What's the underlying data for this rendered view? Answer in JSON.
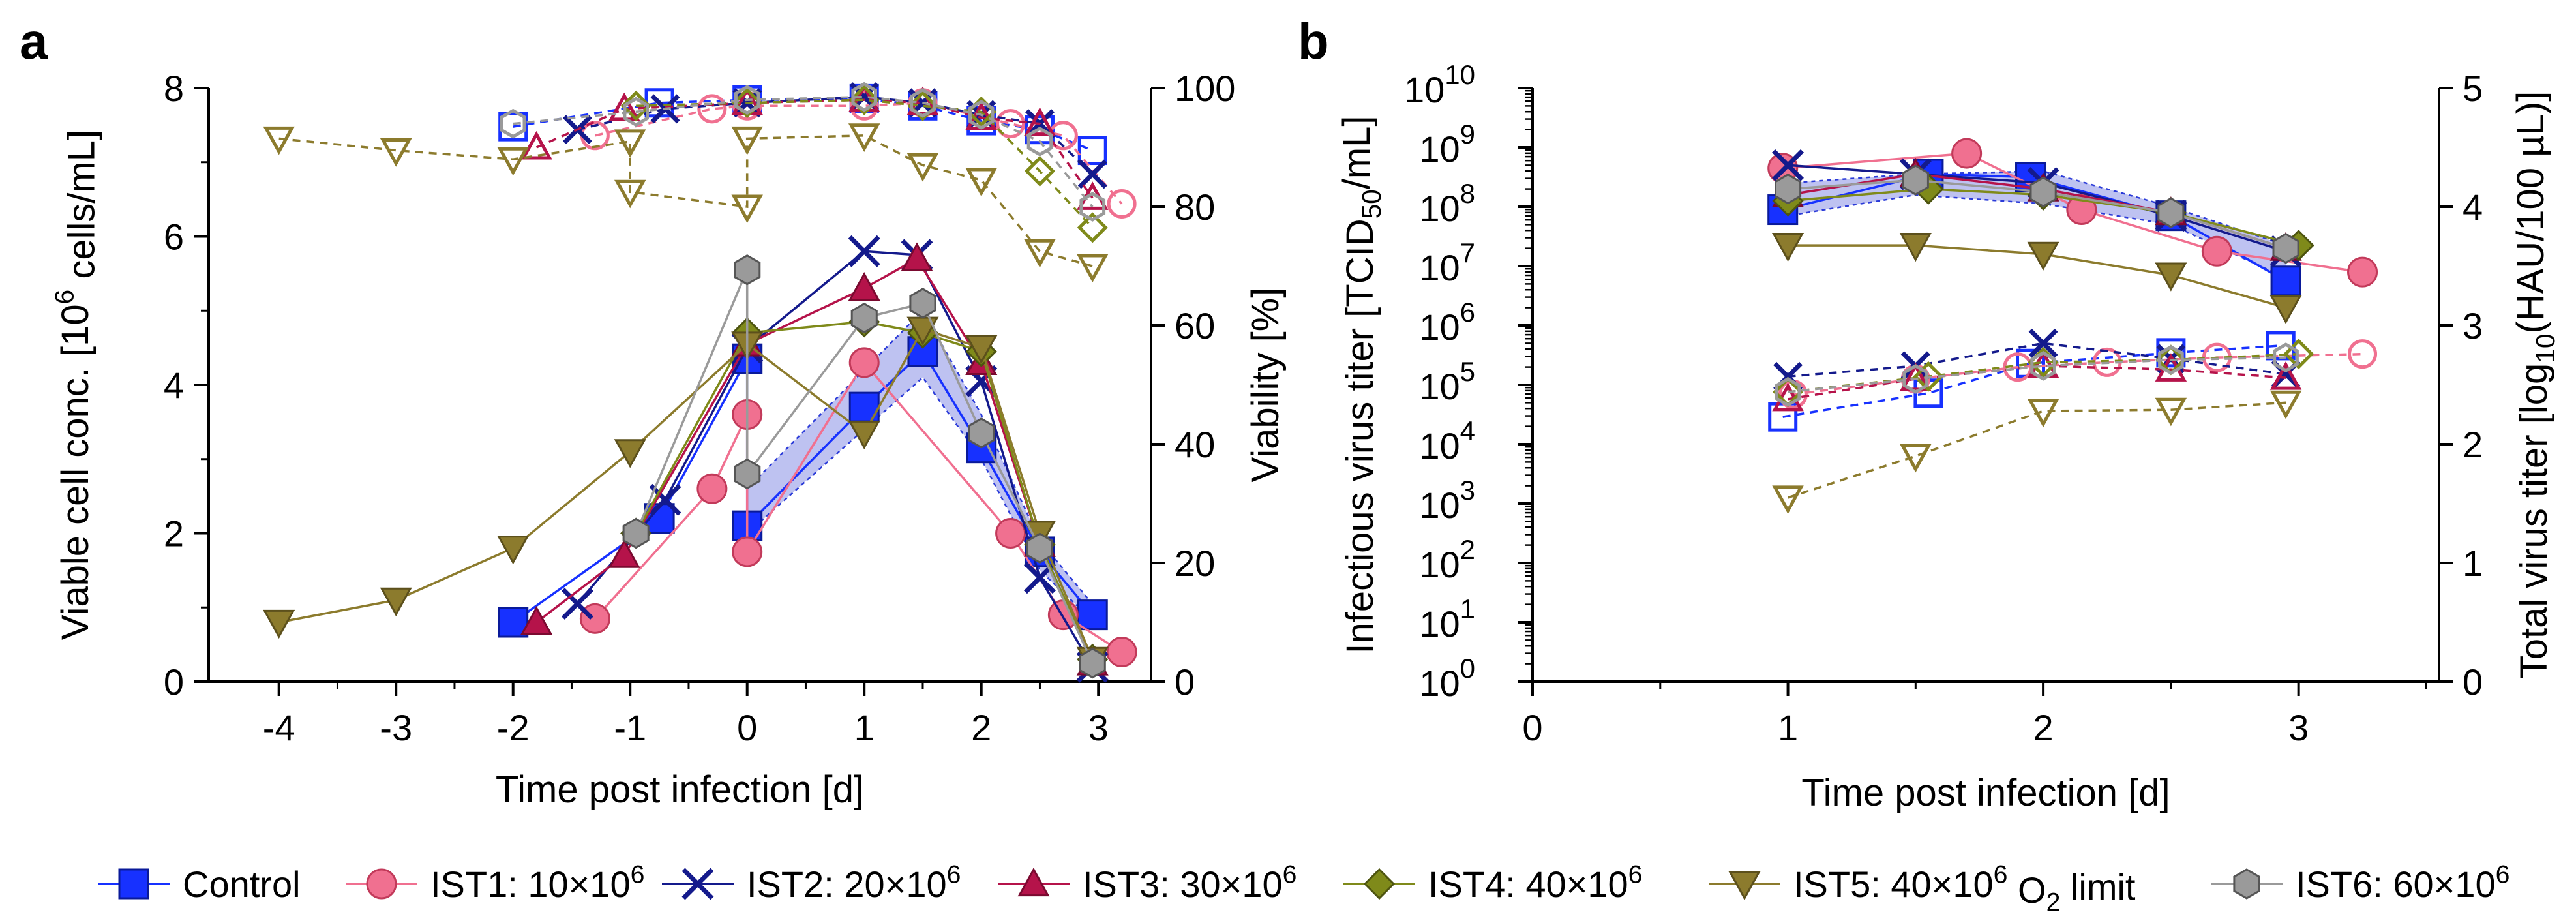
{
  "chart_data": [
    {
      "type": "line",
      "panel_label": "a",
      "xlabel": "Time post infection [d]",
      "ylabel_left_parts": [
        "Viable cell conc. [10",
        "6",
        " cells/mL]"
      ],
      "ylabel_right": "Viability [%]",
      "xlim": [
        -4.6,
        3.45
      ],
      "ylim_left": [
        0,
        8
      ],
      "ylim_right": [
        0,
        100
      ],
      "x_ticks": [
        "-4",
        "-3",
        "-2",
        "-1",
        "0",
        "1",
        "2",
        "3"
      ],
      "y_ticks_left": [
        "0",
        "2",
        "4",
        "6",
        "8"
      ],
      "y_ticks_right": [
        "0",
        "20",
        "40",
        "60",
        "80",
        "100"
      ],
      "band": {
        "x": [
          0,
          1,
          1.5,
          2,
          2.5,
          3
        ],
        "low": [
          2.0,
          3.4,
          4.1,
          3.0,
          1.5,
          0.75
        ],
        "high": [
          2.6,
          4.2,
          5.0,
          3.6,
          1.9,
          0.95
        ]
      },
      "series": [
        {
          "key": "control",
          "vcc": {
            "x": [
              -2,
              -0.75,
              0,
              0,
              1,
              1.5,
              2,
              2.5,
              2.95
            ],
            "y": [
              0.8,
              2.2,
              4.35,
              2.1,
              3.7,
              4.45,
              3.15,
              1.75,
              0.9
            ]
          },
          "viab": {
            "x": [
              -2,
              -0.75,
              0,
              1,
              1.5,
              2,
              2.5,
              2.95
            ],
            "y": [
              93.5,
              97.5,
              98,
              98.2,
              97,
              94.5,
              93,
              89.5
            ]
          }
        },
        {
          "key": "ist1",
          "vcc": {
            "x": [
              -1.3,
              -0.3,
              0,
              0,
              1,
              2.25,
              2.7,
              3.2
            ],
            "y": [
              0.85,
              2.6,
              3.6,
              1.75,
              4.3,
              2.0,
              0.9,
              0.4
            ]
          },
          "viab": {
            "x": [
              -1.3,
              -0.3,
              0,
              1,
              1.5,
              2.25,
              2.7,
              3.2
            ],
            "y": [
              92,
              96.5,
              97,
              97,
              97.5,
              94,
              92,
              80.5
            ]
          }
        },
        {
          "key": "ist2",
          "vcc": {
            "x": [
              -1.45,
              -0.7,
              0,
              1,
              1.45,
              2,
              2.5,
              2.95
            ],
            "y": [
              1.05,
              2.45,
              4.5,
              5.8,
              5.75,
              4.05,
              1.4,
              0.2
            ]
          },
          "viab": {
            "x": [
              -1.45,
              -0.7,
              0,
              1,
              1.5,
              2,
              2.5,
              2.95
            ],
            "y": [
              93,
              96.5,
              97.5,
              98.5,
              97.5,
              95.5,
              94,
              85.5
            ]
          }
        },
        {
          "key": "ist3",
          "vcc": {
            "x": [
              -1.8,
              -1.05,
              0,
              1,
              1.45,
              2,
              2.5,
              2.95
            ],
            "y": [
              0.8,
              1.7,
              4.55,
              5.3,
              5.7,
              4.3,
              1.85,
              0.25
            ]
          },
          "viab": {
            "x": [
              -1.8,
              -1.05,
              0,
              1,
              1.5,
              2,
              2.5,
              2.95
            ],
            "y": [
              90,
              96.5,
              97.5,
              98,
              97.5,
              95,
              94,
              81.5
            ]
          }
        },
        {
          "key": "ist4",
          "vcc": {
            "x": [
              -0.95,
              0,
              1,
              1.5,
              2,
              2.5,
              2.95
            ],
            "y": [
              2.0,
              4.7,
              4.85,
              4.7,
              4.45,
              1.85,
              0.3
            ]
          },
          "viab": {
            "x": [
              -0.95,
              0,
              1,
              1.5,
              2,
              2.5,
              2.95
            ],
            "y": [
              97,
              97.5,
              98,
              97,
              96,
              86,
              76.5
            ]
          }
        },
        {
          "key": "ist5",
          "vcc": {
            "x": [
              -4,
              -3,
              -2,
              -1,
              0,
              1,
              1.5,
              2,
              2.5,
              2.95
            ],
            "y": [
              0.8,
              1.1,
              1.8,
              3.1,
              4.55,
              3.35,
              4.75,
              4.5,
              2.0,
              0.3
            ]
          },
          "viab": {
            "x": [
              -4,
              -3,
              -2,
              -1,
              -1,
              0,
              0,
              1,
              1.5,
              2,
              2.5,
              2.95
            ],
            "y": [
              91.5,
              89.5,
              88,
              91,
              82.5,
              80,
              91.5,
              92,
              87,
              84.5,
              72.5,
              70
            ]
          }
        },
        {
          "key": "ist6",
          "vcc": {
            "x": [
              -0.95,
              0,
              0,
              1,
              1.5,
              2,
              2.5,
              2.95
            ],
            "y": [
              2.0,
              5.55,
              2.8,
              4.9,
              5.1,
              3.35,
              1.8,
              0.25
            ]
          },
          "viab": {
            "x": [
              -2,
              -0.95,
              0,
              1,
              1.5,
              2,
              2.5,
              2.95
            ],
            "y": [
              94,
              96,
              98,
              98.5,
              97.5,
              95.5,
              91,
              80
            ]
          }
        }
      ]
    },
    {
      "type": "line",
      "panel_label": "b",
      "xlabel": "Time post infection [d]",
      "ylabel_left_parts": [
        "Infectious virus titer [TCID",
        "50",
        "/mL]"
      ],
      "ylabel_right_parts": [
        "Total virus titer [log",
        "10",
        "(HAU/100 µL)]"
      ],
      "xlim": [
        0,
        3.55
      ],
      "ylim_left_log10": [
        0,
        10
      ],
      "ylim_right": [
        0,
        5
      ],
      "x_ticks": [
        "0",
        "1",
        "2",
        "3"
      ],
      "y_ticks_left_exp": [
        "0",
        "1",
        "2",
        "3",
        "4",
        "5",
        "6",
        "7",
        "8",
        "9",
        "10"
      ],
      "y_ticks_right": [
        "0",
        "1",
        "2",
        "3",
        "4",
        "5"
      ],
      "band": {
        "x": [
          1,
          1.5,
          2,
          2.5,
          2.95
        ],
        "low": [
          7.85,
          8.2,
          8.05,
          7.7,
          6.8
        ],
        "high": [
          8.4,
          8.55,
          8.6,
          8.0,
          7.35
        ]
      },
      "series": [
        {
          "key": "control",
          "tcid": {
            "x": [
              0.98,
              1.55,
              1.95,
              2.5,
              2.95
            ],
            "y": [
              7.95,
              8.55,
              8.5,
              7.85,
              6.75
            ]
          },
          "hau": {
            "x": [
              0.98,
              1.55,
              1.95,
              2.5,
              2.93
            ],
            "y": [
              2.23,
              2.43,
              2.68,
              2.77,
              2.83
            ]
          }
        },
        {
          "key": "ist1",
          "tcid": {
            "x": [
              0.98,
              1.7,
              2.15,
              2.68,
              3.25
            ],
            "y": [
              8.65,
              8.9,
              7.95,
              7.25,
              6.9
            ]
          },
          "hau": {
            "x": [
              1.02,
              1.5,
              1.9,
              2.25,
              2.68,
              3.25
            ],
            "y": [
              2.42,
              2.55,
              2.65,
              2.69,
              2.73,
              2.76
            ]
          }
        },
        {
          "key": "ist2",
          "tcid": {
            "x": [
              1,
              1.5,
              2,
              2.5,
              2.95
            ],
            "y": [
              8.7,
              8.55,
              8.4,
              7.85,
              7.25
            ]
          },
          "hau": {
            "x": [
              1,
              1.5,
              2,
              2.5,
              2.95
            ],
            "y": [
              2.57,
              2.66,
              2.85,
              2.72,
              2.59
            ]
          }
        },
        {
          "key": "ist3",
          "tcid": {
            "x": [
              1,
              1.5,
              2,
              2.5,
              2.95
            ],
            "y": [
              8.2,
              8.55,
              8.3,
              7.9,
              7.3
            ]
          },
          "hau": {
            "x": [
              1,
              1.5,
              2,
              2.5,
              2.95
            ],
            "y": [
              2.38,
              2.55,
              2.66,
              2.63,
              2.56
            ]
          }
        },
        {
          "key": "ist4",
          "tcid": {
            "x": [
              1,
              1.55,
              2,
              2.5,
              3
            ],
            "y": [
              8.1,
              8.3,
              8.2,
              7.9,
              7.35
            ]
          },
          "hau": {
            "x": [
              1,
              1.55,
              2,
              2.5,
              3
            ],
            "y": [
              2.44,
              2.57,
              2.69,
              2.71,
              2.76
            ]
          }
        },
        {
          "key": "ist5",
          "tcid": {
            "x": [
              1,
              1.5,
              2,
              2.5,
              2.95
            ],
            "y": [
              7.35,
              7.35,
              7.2,
              6.85,
              6.3
            ]
          },
          "hau": {
            "x": [
              1,
              1.5,
              2,
              2.5,
              2.95
            ],
            "y": [
              1.55,
              1.9,
              2.28,
              2.29,
              2.35
            ]
          }
        },
        {
          "key": "ist6",
          "tcid": {
            "x": [
              1,
              1.5,
              2,
              2.5,
              2.95
            ],
            "y": [
              8.3,
              8.45,
              8.25,
              7.9,
              7.3
            ]
          },
          "hau": {
            "x": [
              1,
              1.5,
              2,
              2.5,
              2.95
            ],
            "y": [
              2.44,
              2.55,
              2.66,
              2.71,
              2.73
            ]
          }
        }
      ]
    }
  ],
  "legend": [
    {
      "key": "control",
      "label_parts": [
        "Control"
      ],
      "marker": "square",
      "color": "#1731ff",
      "edge": "#0a1a99"
    },
    {
      "key": "ist1",
      "label_parts": [
        "IST1: 10×10",
        "6",
        ""
      ],
      "marker": "circle",
      "color": "#f07090",
      "edge": "#c23a5a"
    },
    {
      "key": "ist2",
      "label_parts": [
        "IST2: 20×10",
        "6",
        ""
      ],
      "marker": "x",
      "color": "#141a8c",
      "edge": "#141a8c"
    },
    {
      "key": "ist3",
      "label_parts": [
        "IST3: 30×10",
        "6",
        ""
      ],
      "marker": "triangle",
      "color": "#b5134a",
      "edge": "#7a0a30"
    },
    {
      "key": "ist4",
      "label_parts": [
        "IST4: 40×10",
        "6",
        ""
      ],
      "marker": "diamond",
      "color": "#7f8a1a",
      "edge": "#4d5410"
    },
    {
      "key": "ist5",
      "label_parts": [
        "IST5: 40×10",
        "6",
        " O",
        "2",
        " limit"
      ],
      "marker": "tri-down",
      "color": "#8c7b2d",
      "edge": "#5c501c"
    },
    {
      "key": "ist6",
      "label_parts": [
        "IST6: 60×10",
        "6",
        ""
      ],
      "marker": "hexagon",
      "color": "#9a9a9a",
      "edge": "#555555"
    }
  ]
}
